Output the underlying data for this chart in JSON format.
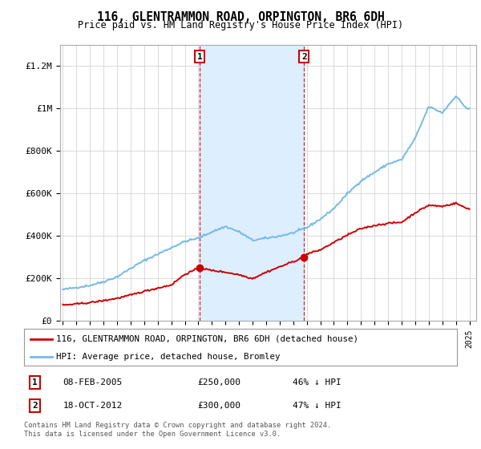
{
  "title": "116, GLENTRAMMON ROAD, ORPINGTON, BR6 6DH",
  "subtitle": "Price paid vs. HM Land Registry's House Price Index (HPI)",
  "ylabel_ticks": [
    "£0",
    "£200K",
    "£400K",
    "£600K",
    "£800K",
    "£1M",
    "£1.2M"
  ],
  "ytick_vals": [
    0,
    200000,
    400000,
    600000,
    800000,
    1000000,
    1200000
  ],
  "ylim": [
    0,
    1300000
  ],
  "xlim_start": 1994.8,
  "xlim_end": 2025.5,
  "hpi_color": "#74b9e8",
  "price_color": "#cc0000",
  "sale1_date": 2005.1,
  "sale1_price": 250000,
  "sale2_date": 2012.8,
  "sale2_price": 300000,
  "legend_line1": "116, GLENTRAMMON ROAD, ORPINGTON, BR6 6DH (detached house)",
  "legend_line2": "HPI: Average price, detached house, Bromley",
  "annotation1_date": "08-FEB-2005",
  "annotation1_price": "£250,000",
  "annotation1_hpi": "46% ↓ HPI",
  "annotation2_date": "18-OCT-2012",
  "annotation2_price": "£300,000",
  "annotation2_hpi": "47% ↓ HPI",
  "footer": "Contains HM Land Registry data © Crown copyright and database right 2024.\nThis data is licensed under the Open Government Licence v3.0.",
  "bg_color": "#ffffff",
  "plot_bg_color": "#ffffff",
  "shade_color": "#ddeeff",
  "grid_color": "#cccccc",
  "hpi_anchors_x": [
    1995,
    1996,
    1997,
    1998,
    1999,
    2000,
    2001,
    2002,
    2003,
    2004,
    2005,
    2006,
    2007,
    2008,
    2009,
    2010,
    2011,
    2012,
    2013,
    2014,
    2015,
    2016,
    2017,
    2018,
    2019,
    2020,
    2021,
    2022,
    2023,
    2024,
    2024.8
  ],
  "hpi_anchors_y": [
    148000,
    158000,
    168000,
    185000,
    208000,
    248000,
    285000,
    315000,
    345000,
    375000,
    390000,
    420000,
    445000,
    420000,
    380000,
    390000,
    400000,
    415000,
    440000,
    480000,
    530000,
    600000,
    660000,
    700000,
    740000,
    760000,
    860000,
    1010000,
    980000,
    1060000,
    1000000
  ],
  "price_anchors_x": [
    1995,
    1996,
    1997,
    1998,
    1999,
    2000,
    2001,
    2002,
    2003,
    2004,
    2005.1,
    2006,
    2007,
    2008,
    2009,
    2010,
    2011,
    2012.8,
    2013,
    2014,
    2015,
    2016,
    2017,
    2018,
    2019,
    2020,
    2021,
    2022,
    2023,
    2024,
    2024.8
  ],
  "price_anchors_y": [
    75000,
    80000,
    87000,
    96000,
    107000,
    122000,
    140000,
    155000,
    170000,
    220000,
    250000,
    238000,
    230000,
    218000,
    200000,
    230000,
    255000,
    300000,
    315000,
    335000,
    370000,
    405000,
    435000,
    450000,
    460000,
    465000,
    510000,
    545000,
    540000,
    555000,
    530000
  ]
}
